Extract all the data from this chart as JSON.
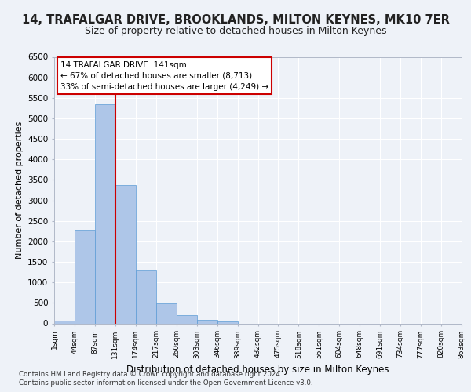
{
  "title": "14, TRAFALGAR DRIVE, BROOKLANDS, MILTON KEYNES, MK10 7ER",
  "subtitle": "Size of property relative to detached houses in Milton Keynes",
  "xlabel": "Distribution of detached houses by size in Milton Keynes",
  "ylabel": "Number of detached properties",
  "footnote1": "Contains HM Land Registry data © Crown copyright and database right 2024.",
  "footnote2": "Contains public sector information licensed under the Open Government Licence v3.0.",
  "annotation_title": "14 TRAFALGAR DRIVE: 141sqm",
  "annotation_line1": "← 67% of detached houses are smaller (8,713)",
  "annotation_line2": "33% of semi-detached houses are larger (4,249) →",
  "bar_color": "#aec6e8",
  "bar_edge_color": "#5b9bd5",
  "vline_color": "#cc0000",
  "vline_x": 3,
  "ylim": [
    0,
    6500
  ],
  "yticks": [
    0,
    500,
    1000,
    1500,
    2000,
    2500,
    3000,
    3500,
    4000,
    4500,
    5000,
    5500,
    6000,
    6500
  ],
  "bin_labels": [
    "1sqm",
    "44sqm",
    "87sqm",
    "131sqm",
    "174sqm",
    "217sqm",
    "260sqm",
    "303sqm",
    "346sqm",
    "389sqm",
    "432sqm",
    "475sqm",
    "518sqm",
    "561sqm",
    "604sqm",
    "648sqm",
    "691sqm",
    "734sqm",
    "777sqm",
    "820sqm",
    "863sqm"
  ],
  "bar_heights": [
    75,
    2270,
    5350,
    3380,
    1290,
    490,
    210,
    90,
    55,
    0,
    0,
    0,
    0,
    0,
    0,
    0,
    0,
    0,
    0,
    0
  ],
  "n_bars": 20,
  "background_color": "#eef2f8",
  "grid_color": "#ffffff",
  "annotation_box_color": "#ffffff",
  "annotation_box_edge": "#cc0000",
  "title_fontsize": 10.5,
  "subtitle_fontsize": 9
}
